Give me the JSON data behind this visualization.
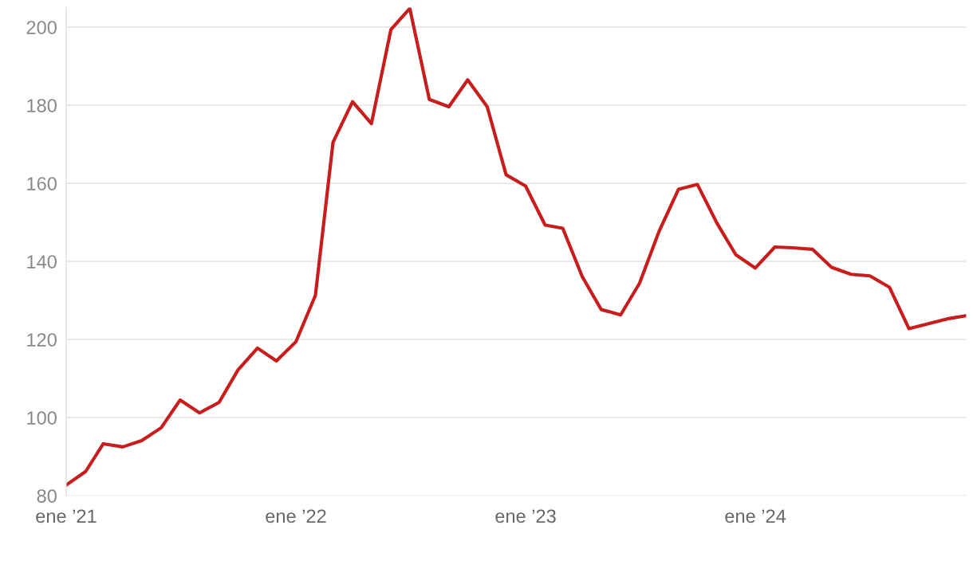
{
  "chart_data": {
    "type": "line",
    "x": [
      "2021-01",
      "2021-02",
      "2021-03",
      "2021-04",
      "2021-05",
      "2021-06",
      "2021-07",
      "2021-08",
      "2021-09",
      "2021-10",
      "2021-11",
      "2021-12",
      "2022-01",
      "2022-02",
      "2022-03",
      "2022-04",
      "2022-05",
      "2022-06",
      "2022-07",
      "2022-08",
      "2022-09",
      "2022-10",
      "2022-11",
      "2022-12",
      "2023-01",
      "2023-02",
      "2023-03",
      "2023-04",
      "2023-05",
      "2023-06",
      "2023-07",
      "2023-08",
      "2023-09",
      "2023-10",
      "2023-11",
      "2023-12",
      "2024-01",
      "2024-02",
      "2024-03",
      "2024-04",
      "2024-05",
      "2024-06",
      "2024-07",
      "2024-08",
      "2024-09",
      "2024-10",
      "2024-11",
      "2024-12"
    ],
    "series": [
      {
        "color": "#c71e1d",
        "values": [
          82.7,
          86.2,
          93.3,
          92.5,
          94.1,
          97.4,
          104.5,
          101.2,
          103.9,
          112.2,
          117.8,
          114.5,
          119.4,
          131.3,
          170.5,
          180.9,
          175.3,
          199.4,
          204.8,
          181.5,
          179.6,
          186.5,
          179.6,
          162.2,
          159.3,
          149.3,
          148.5,
          136.1,
          127.7,
          126.3,
          134.4,
          147.7,
          158.5,
          159.7,
          149.8,
          141.7,
          138.3,
          143.7,
          143.5,
          143.1,
          138.5,
          136.7,
          136.3,
          133.4,
          122.8,
          124.0,
          125.3,
          126.1
        ]
      }
    ],
    "xlim": [
      "2021-01",
      "2024-12"
    ],
    "xticks": [
      {
        "value": "2021-01",
        "label": "ene ’21"
      },
      {
        "value": "2022-01",
        "label": "ene ’22"
      },
      {
        "value": "2023-01",
        "label": "ene ’23"
      },
      {
        "value": "2024-01",
        "label": "ene ’24"
      }
    ],
    "yticks": [
      80,
      100,
      120,
      140,
      160,
      180,
      200
    ],
    "ylim": [
      80,
      205
    ],
    "grid": "y",
    "line_style": "solid",
    "marker": "none"
  }
}
